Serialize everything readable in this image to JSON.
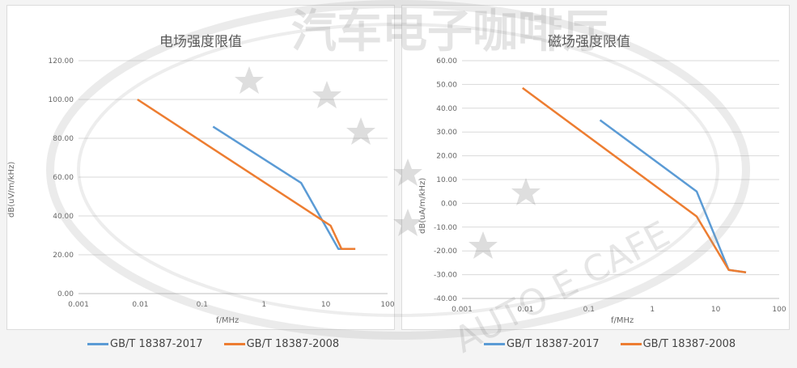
{
  "legend": {
    "series1": "GB/T 18387-2017",
    "series2": "GB/T 18387-2008"
  },
  "colors": {
    "series1": "#5b9bd5",
    "series2": "#ed7d31",
    "grid": "#d9d9d9"
  },
  "watermark": {
    "title": "汽车电子咖啡厅",
    "logo": "AUTO E CAFE"
  },
  "chart_data": [
    {
      "type": "line",
      "title": "电场强度限值",
      "xlabel": "f/MHz",
      "ylabel": "dB(uV/m/kHz)",
      "x_scale": "log",
      "xlim": [
        0.001,
        100
      ],
      "ylim": [
        0,
        120
      ],
      "x_ticks": [
        "0.001",
        "0.01",
        "0.1",
        "1",
        "10",
        "100"
      ],
      "y_ticks": [
        "0.00",
        "20.00",
        "40.00",
        "60.00",
        "80.00",
        "100.00",
        "120.00"
      ],
      "series": [
        {
          "name": "GB/T 18387-2017",
          "x": [
            0.15,
            4,
            16,
            30
          ],
          "y": [
            86,
            57,
            23,
            23
          ]
        },
        {
          "name": "GB/T 18387-2008",
          "x": [
            0.009,
            12,
            18,
            30
          ],
          "y": [
            100,
            35,
            23,
            23
          ]
        }
      ]
    },
    {
      "type": "line",
      "title": "磁场强度限值",
      "xlabel": "f/MHz",
      "ylabel": "dB(uA/m/kHz)",
      "x_scale": "log",
      "xlim": [
        0.001,
        100
      ],
      "ylim": [
        -40,
        60
      ],
      "x_ticks": [
        "0.001",
        "0.01",
        "0.1",
        "1",
        "10",
        "100"
      ],
      "y_ticks": [
        "-40.00",
        "-30.00",
        "-20.00",
        "-10.00",
        "0.00",
        "10.00",
        "20.00",
        "30.00",
        "40.00",
        "50.00",
        "60.00"
      ],
      "series": [
        {
          "name": "GB/T 18387-2017",
          "x": [
            0.15,
            5,
            16,
            30
          ],
          "y": [
            35,
            5,
            -28,
            -29
          ]
        },
        {
          "name": "GB/T 18387-2008",
          "x": [
            0.009,
            5,
            16,
            30
          ],
          "y": [
            48.5,
            -5.5,
            -28,
            -29
          ]
        }
      ]
    }
  ]
}
